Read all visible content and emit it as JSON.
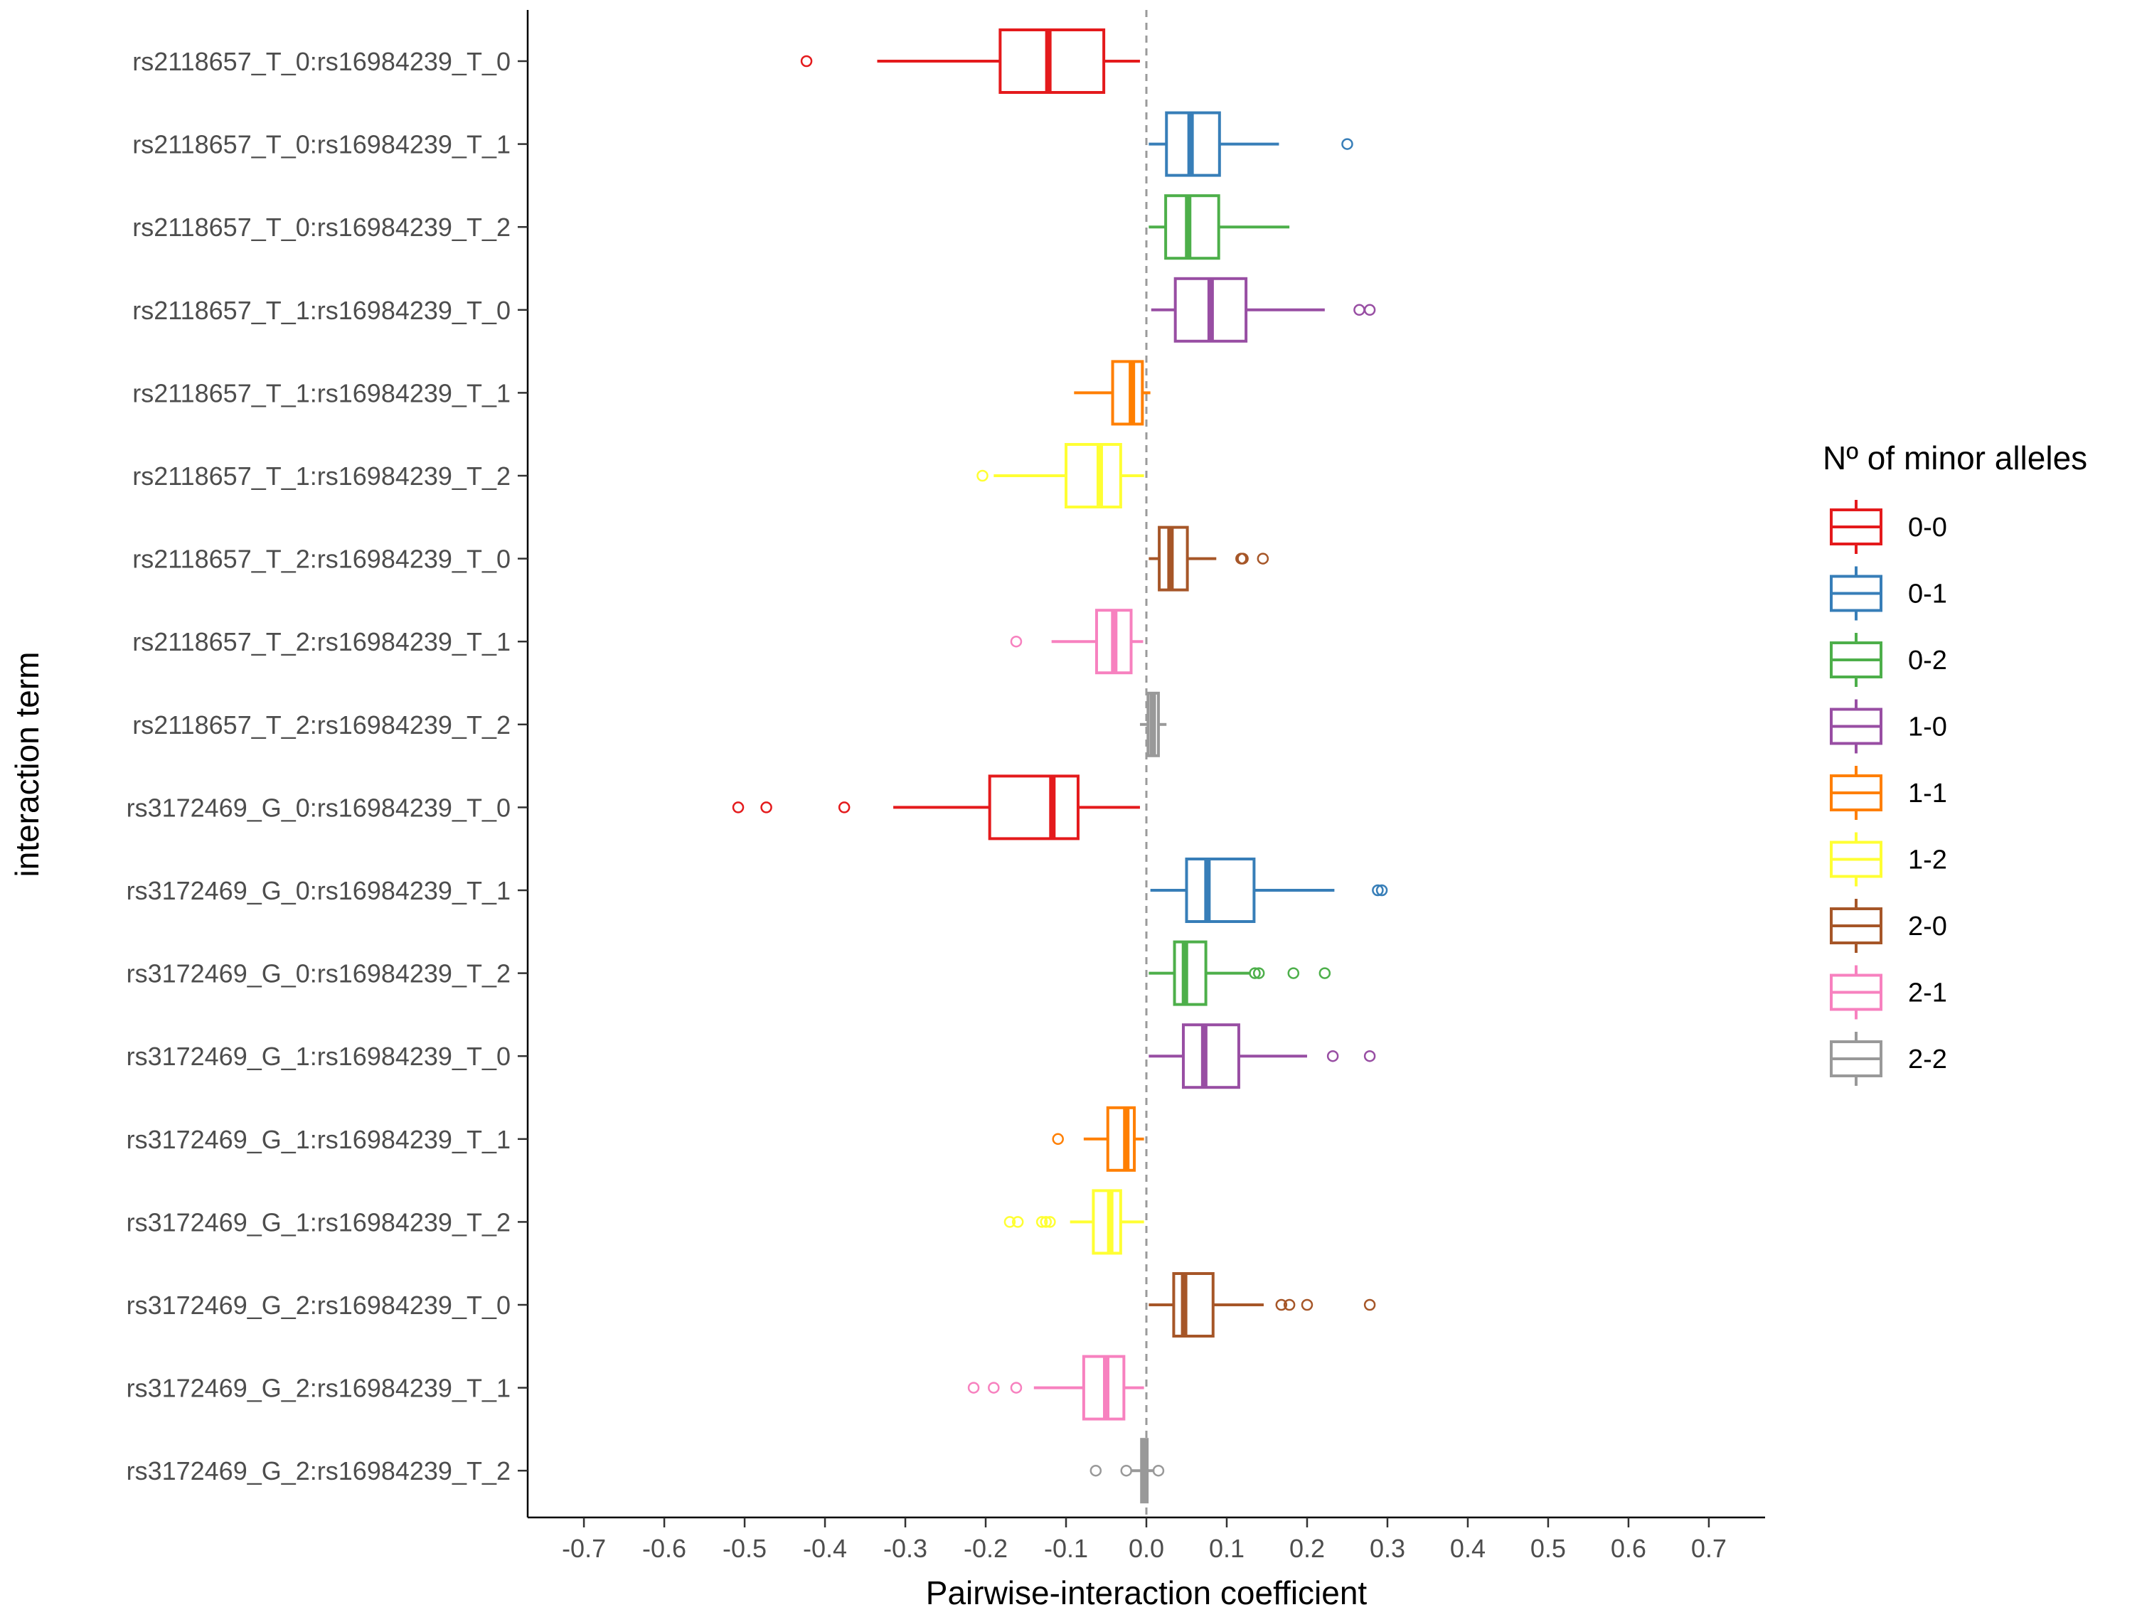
{
  "chart_data": {
    "type": "boxplot",
    "orientation": "horizontal",
    "xlabel": "Pairwise-interaction coefficient",
    "ylabel": "interaction term",
    "xlim": [
      -0.77,
      0.77
    ],
    "xticks": [
      -0.7,
      -0.6,
      -0.5,
      -0.4,
      -0.3,
      -0.2,
      -0.1,
      0.0,
      0.1,
      0.2,
      0.3,
      0.4,
      0.5,
      0.6,
      0.7
    ],
    "xtick_labels": [
      "-0.7",
      "-0.6",
      "-0.5",
      "-0.4",
      "-0.3",
      "-0.2",
      "-0.1",
      "0.0",
      "0.1",
      "0.2",
      "0.3",
      "0.4",
      "0.5",
      "0.6",
      "0.7"
    ],
    "reference_line": 0.0,
    "legend": {
      "title": "Nº of minor alleles",
      "placement": "right",
      "entries": [
        {
          "label": "0-0",
          "color": "#E41A1C"
        },
        {
          "label": "0-1",
          "color": "#377EB8"
        },
        {
          "label": "0-2",
          "color": "#4DAF4A"
        },
        {
          "label": "1-0",
          "color": "#984EA3"
        },
        {
          "label": "1-1",
          "color": "#FF7F00"
        },
        {
          "label": "1-2",
          "color": "#FFFF33"
        },
        {
          "label": "2-0",
          "color": "#A65628"
        },
        {
          "label": "2-1",
          "color": "#F781BF"
        },
        {
          "label": "2-2",
          "color": "#999999"
        }
      ]
    },
    "series": [
      {
        "term": "rs2118657_T_0:rs16984239_T_0",
        "group": "0-0",
        "whisker_low": -0.335,
        "q1": -0.182,
        "median": -0.122,
        "q3": -0.053,
        "whisker_high": -0.008,
        "outliers": [
          -0.423
        ]
      },
      {
        "term": "rs2118657_T_0:rs16984239_T_1",
        "group": "0-1",
        "whisker_low": 0.003,
        "q1": 0.025,
        "median": 0.055,
        "q3": 0.091,
        "whisker_high": 0.165,
        "outliers": [
          0.25
        ]
      },
      {
        "term": "rs2118657_T_0:rs16984239_T_2",
        "group": "0-2",
        "whisker_low": 0.003,
        "q1": 0.024,
        "median": 0.052,
        "q3": 0.09,
        "whisker_high": 0.178,
        "outliers": []
      },
      {
        "term": "rs2118657_T_1:rs16984239_T_0",
        "group": "1-0",
        "whisker_low": 0.006,
        "q1": 0.036,
        "median": 0.08,
        "q3": 0.124,
        "whisker_high": 0.222,
        "outliers": [
          0.265,
          0.278
        ]
      },
      {
        "term": "rs2118657_T_1:rs16984239_T_1",
        "group": "1-1",
        "whisker_low": -0.09,
        "q1": -0.042,
        "median": -0.018,
        "q3": -0.005,
        "whisker_high": 0.005,
        "outliers": []
      },
      {
        "term": "rs2118657_T_1:rs16984239_T_2",
        "group": "1-2",
        "whisker_low": -0.19,
        "q1": -0.1,
        "median": -0.058,
        "q3": -0.032,
        "whisker_high": -0.003,
        "outliers": [
          -0.204
        ]
      },
      {
        "term": "rs2118657_T_2:rs16984239_T_0",
        "group": "2-0",
        "whisker_low": 0.003,
        "q1": 0.016,
        "median": 0.03,
        "q3": 0.051,
        "whisker_high": 0.087,
        "outliers": [
          0.118,
          0.12,
          0.145
        ]
      },
      {
        "term": "rs2118657_T_2:rs16984239_T_1",
        "group": "2-1",
        "whisker_low": -0.118,
        "q1": -0.062,
        "median": -0.04,
        "q3": -0.019,
        "whisker_high": -0.004,
        "outliers": [
          -0.162
        ]
      },
      {
        "term": "rs2118657_T_2:rs16984239_T_2",
        "group": "2-2",
        "whisker_low": -0.008,
        "q1": 0.002,
        "median": 0.008,
        "q3": 0.015,
        "whisker_high": 0.025,
        "outliers": []
      },
      {
        "term": "rs3172469_G_0:rs16984239_T_0",
        "group": "0-0",
        "whisker_low": -0.315,
        "q1": -0.195,
        "median": -0.117,
        "q3": -0.085,
        "whisker_high": -0.008,
        "outliers": [
          -0.508,
          -0.473,
          -0.376
        ]
      },
      {
        "term": "rs3172469_G_0:rs16984239_T_1",
        "group": "0-1",
        "whisker_low": 0.005,
        "q1": 0.05,
        "median": 0.076,
        "q3": 0.134,
        "whisker_high": 0.234,
        "outliers": [
          0.288,
          0.293
        ]
      },
      {
        "term": "rs3172469_G_0:rs16984239_T_2",
        "group": "0-2",
        "whisker_low": 0.003,
        "q1": 0.035,
        "median": 0.048,
        "q3": 0.074,
        "whisker_high": 0.128,
        "outliers": [
          0.135,
          0.14,
          0.183,
          0.222
        ]
      },
      {
        "term": "rs3172469_G_1:rs16984239_T_0",
        "group": "1-0",
        "whisker_low": 0.003,
        "q1": 0.046,
        "median": 0.072,
        "q3": 0.115,
        "whisker_high": 0.2,
        "outliers": [
          0.232,
          0.278
        ]
      },
      {
        "term": "rs3172469_G_1:rs16984239_T_1",
        "group": "1-1",
        "whisker_low": -0.078,
        "q1": -0.048,
        "median": -0.025,
        "q3": -0.015,
        "whisker_high": -0.003,
        "outliers": [
          -0.11
        ]
      },
      {
        "term": "rs3172469_G_1:rs16984239_T_2",
        "group": "1-2",
        "whisker_low": -0.095,
        "q1": -0.066,
        "median": -0.045,
        "q3": -0.032,
        "whisker_high": -0.003,
        "outliers": [
          -0.17,
          -0.16,
          -0.13,
          -0.125,
          -0.12
        ]
      },
      {
        "term": "rs3172469_G_2:rs16984239_T_0",
        "group": "2-0",
        "whisker_low": 0.003,
        "q1": 0.034,
        "median": 0.047,
        "q3": 0.083,
        "whisker_high": 0.146,
        "outliers": [
          0.168,
          0.178,
          0.2,
          0.278
        ]
      },
      {
        "term": "rs3172469_G_2:rs16984239_T_1",
        "group": "2-1",
        "whisker_low": -0.14,
        "q1": -0.078,
        "median": -0.05,
        "q3": -0.028,
        "whisker_high": -0.003,
        "outliers": [
          -0.215,
          -0.19,
          -0.162
        ]
      },
      {
        "term": "rs3172469_G_2:rs16984239_T_2",
        "group": "2-2",
        "whisker_low": -0.02,
        "q1": -0.006,
        "median": -0.003,
        "q3": 0.001,
        "whisker_high": 0.01,
        "outliers": [
          -0.063,
          -0.025,
          0.015
        ]
      }
    ]
  }
}
